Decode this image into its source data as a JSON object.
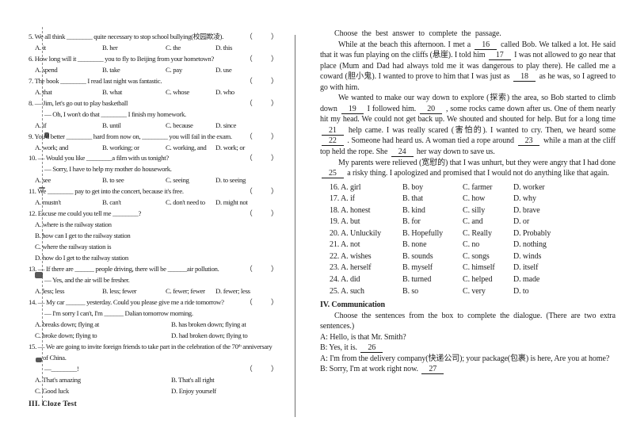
{
  "left_column": {
    "bracket_open": "（",
    "bracket_close": "）",
    "section3_title": "III.  Cloze  Test",
    "questions": [
      {
        "lines": [
          {
            "text": "5. We all think ________ quite necessary to stop school bullying(校园欺凌).",
            "bracket": true
          }
        ],
        "options": {
          "cols": 4,
          "rows": [
            [
              "A. it",
              "B. her",
              "C. the",
              "D. this"
            ]
          ]
        }
      },
      {
        "lines": [
          {
            "text": "6. How long will it ________ you to fly to Beijing from your hometown?",
            "bracket": true
          }
        ],
        "options": {
          "cols": 4,
          "rows": [
            [
              "A. spend",
              "B. take",
              "C. pay",
              "D. use"
            ]
          ]
        }
      },
      {
        "lines": [
          {
            "text": "7. The book ________ I read last night was fantastic.",
            "bracket": true
          }
        ],
        "options": {
          "cols": 4,
          "rows": [
            [
              "A. that",
              "B. what",
              "C. whose",
              "D. who"
            ]
          ]
        }
      },
      {
        "lines": [
          {
            "text": "8. — Jim, let's go out to play basketball",
            "bracket": true
          },
          {
            "text": "— Oh, I won't do that ________ I finish my homework.",
            "ind": 1
          }
        ],
        "options": {
          "cols": 4,
          "rows": [
            [
              "A. if",
              "B. until",
              "C. because",
              "D. since"
            ]
          ]
        }
      },
      {
        "lines": [
          {
            "text": "9. You'd better ________ hard from now on, ________ you will fail in the exam.",
            "bracket": true
          }
        ],
        "options": {
          "cols": 4,
          "rows": [
            [
              "A. work; and",
              "B. working; or",
              "C. working, and",
              "D. work; or"
            ]
          ]
        }
      },
      {
        "lines": [
          {
            "text": "10. — Would you like ________a film with us tonight?",
            "bracket": true
          },
          {
            "text": "— Sorry, I have to help my mother do housework.",
            "ind": 1
          }
        ],
        "options": {
          "cols": 4,
          "rows": [
            [
              "A. see",
              "B. to see",
              "C. seeing",
              "D. to seeing"
            ]
          ]
        }
      },
      {
        "lines": [
          {
            "text": "11. We ________ pay to get into the concert, because it's free.",
            "bracket": true
          }
        ],
        "options": {
          "cols": 4,
          "rows": [
            [
              "A. mustn't",
              "B. can't",
              "C. don't need to",
              "D. might not"
            ]
          ]
        }
      },
      {
        "lines": [
          {
            "text": "12. Excuse me could you tell me ________?",
            "bracket": true
          }
        ],
        "options": {
          "cols": 1,
          "rows": [
            [
              "A. where is the railway station"
            ],
            [
              "B. how can I get to the railway station"
            ],
            [
              "C. where the railway station is"
            ],
            [
              "D. how do I get to the railway station"
            ]
          ]
        }
      },
      {
        "lines": [
          {
            "text": "13. — If there are ______ people driving, there will be ______air pollution.",
            "bracket": true
          },
          {
            "text": "— Yes, and the air will be fresher.",
            "ind": 1
          }
        ],
        "options": {
          "cols": 4,
          "rows": [
            [
              "A. less; less",
              "B. less; fewer",
              "C. fewer; fewer",
              "D. fewer; less"
            ]
          ]
        }
      },
      {
        "lines": [
          {
            "text": "14. — My car ______ yesterday. Could you please give me a ride tomorrow?",
            "bracket": true
          },
          {
            "text": "— I'm sorry I can't, I'm ______ Dalian tomorrow morning.",
            "ind": 1
          }
        ],
        "options": {
          "cols": 2,
          "rows": [
            [
              "A. breaks down; flying at",
              "B. has broken down; flying at"
            ],
            [
              "C. broke down; flying to",
              "D. had broken down; flying to"
            ]
          ]
        }
      },
      {
        "lines": [
          {
            "text": "15. — We are going to invite foreign friends to take part in the celebration of the 70ᵗʰ anniversary"
          },
          {
            "text": "of China.",
            "ind": 2
          },
          {
            "text": "—________!",
            "bracket": true,
            "ind": 1
          }
        ],
        "options": {
          "cols": 2,
          "rows": [
            [
              "A. That's amazing",
              "B. That's all right"
            ],
            [
              "C. Good luck",
              "D. Enjoy yourself"
            ]
          ]
        }
      }
    ]
  },
  "right_column": {
    "cloze_instruction": "Choose the best answer to complete the passage.",
    "passage": [
      [
        {
          "text": "While at the beach this afternoon. I met a "
        },
        {
          "blank": "16"
        },
        {
          "text": " called Bob. We talked a lot. He said that it was fun playing on the cliffs (悬崖). I told him "
        },
        {
          "blank": "17"
        },
        {
          "text": " I was not allowed to go near that place (Mum and Dad had always told me it was dangerous to play there). He called me a coward (胆小鬼). I wanted to prove to him that I was just as "
        },
        {
          "blank": "18"
        },
        {
          "text": " as he was, so I agreed to go with him."
        }
      ],
      [
        {
          "text": "We wanted to make our way down to explore (探索) the area, so Bob started to climb down "
        },
        {
          "blank": "19"
        },
        {
          "text": " I followed him. "
        },
        {
          "blank": "20"
        },
        {
          "text": " , some rocks came down after us. One of them nearly hit my head. We could not get back up. We shouted and shouted for help. But for a long time "
        },
        {
          "blank": "21"
        },
        {
          "text": " help came. I was really scared (害怕的). I wanted to cry. Then, we heard some "
        },
        {
          "blank": "22"
        },
        {
          "text": " . Someone had heard us. A woman tied a rope around "
        },
        {
          "blank": "23"
        },
        {
          "text": " while a man at the cliff top held the rope. She "
        },
        {
          "blank": "24"
        },
        {
          "text": " her way down to save us."
        }
      ],
      [
        {
          "text": "My parents were relieved (宽慰的) that I was unhurt, but they were angry that I had done "
        },
        {
          "blank": "25"
        },
        {
          "text": " a risky thing. I apologized and promised that I would not do anything like that again."
        }
      ]
    ],
    "cloze_options": [
      [
        "16. A. girl",
        "B. boy",
        "C. farmer",
        "D. worker"
      ],
      [
        "17. A. if",
        "B. that",
        "C. how",
        "D. why"
      ],
      [
        "18. A. honest",
        "B. kind",
        "C. silly",
        "D. brave"
      ],
      [
        "19. A. but",
        "B. for",
        "C. and",
        "D. or"
      ],
      [
        "20. A. Unluckily",
        "B. Hopefully",
        "C. Really",
        "D. Probably"
      ],
      [
        "21. A. not",
        "B. none",
        "C. no",
        "D. nothing"
      ],
      [
        "22. A. wishes",
        "B. sounds",
        "C. songs",
        "D. winds"
      ],
      [
        "23. A. herself",
        "B. myself",
        "C. himself",
        "D. itself"
      ],
      [
        "24. A. did",
        "B. turned",
        "C. helped",
        "D. made"
      ],
      [
        "25. A. such",
        "B. so",
        "C. very",
        "D. to"
      ]
    ],
    "section4_title": "IV. Communication",
    "communication_instruction": "Choose the sentences from the box to complete the dialogue. (There are two extra sentences.)",
    "dialogue": [
      [
        {
          "text": "A: Hello, is that Mr. Smith?"
        }
      ],
      [
        {
          "text": "B: Yes, it is. "
        },
        {
          "blank": "26"
        }
      ],
      [
        {
          "text": "A: I'm from the delivery company(快递公司); your package(包裹) is here, Are you at home?"
        }
      ],
      [
        {
          "text": "B: Sorry, I'm at work right now. "
        },
        {
          "blank": "27"
        }
      ]
    ]
  }
}
